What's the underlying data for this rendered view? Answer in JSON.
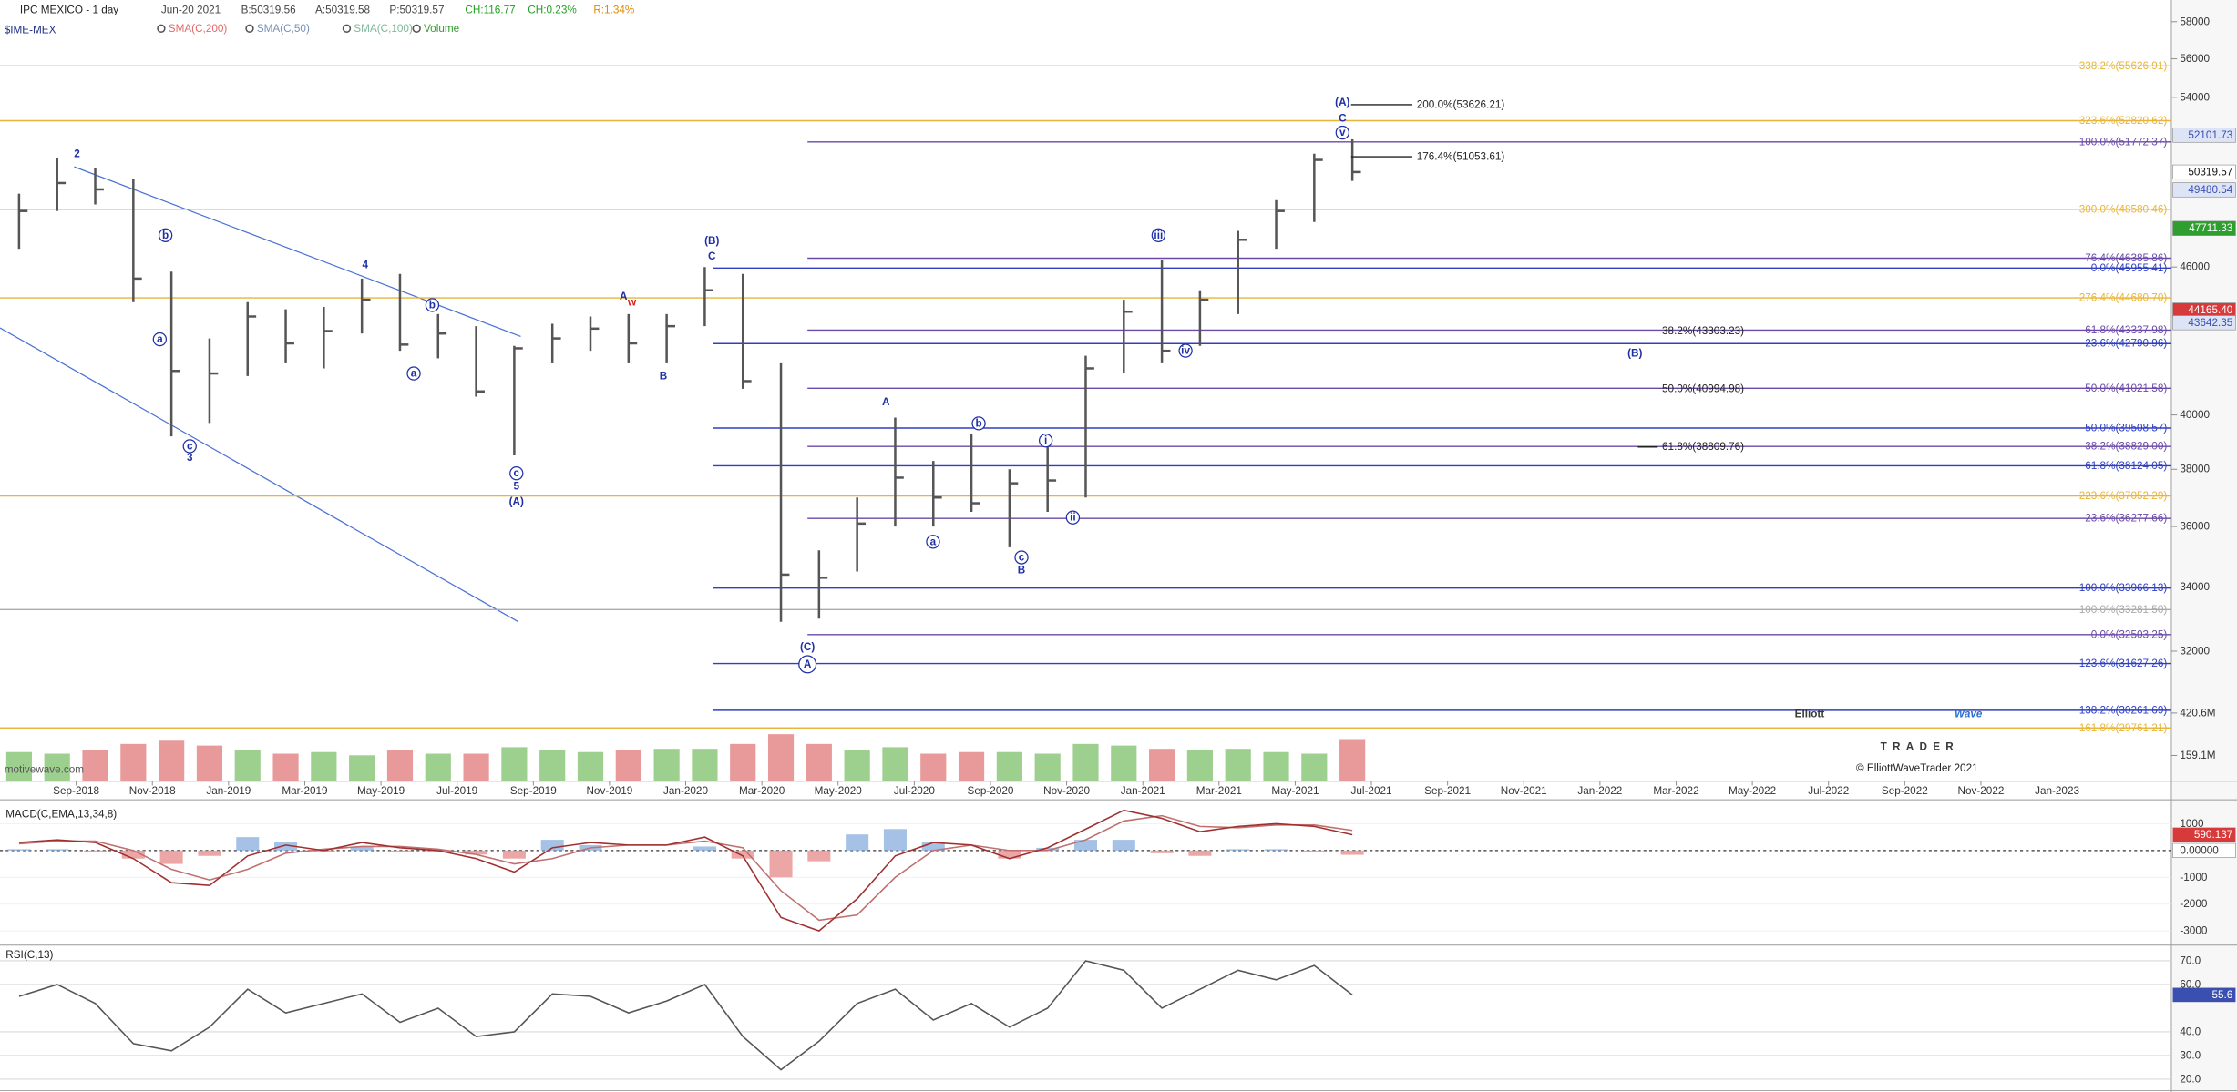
{
  "chart_data": [
    {
      "type": "ohlc",
      "title": "IPC MEXICO - 1 day",
      "subtitle": "$IME-MEX",
      "color": "#555555",
      "log": true,
      "quote": [
        {
          "text": "Jun-20 2021",
          "color": "#444444"
        },
        {
          "text": "B:50319.56",
          "color": "#444444"
        },
        {
          "text": "A:50319.58",
          "color": "#444444"
        },
        {
          "text": "P:50319.57",
          "color": "#444444"
        },
        {
          "text": "CH:116.77",
          "color": "#22a022"
        },
        {
          "text": "CH:0.23%",
          "color": "#22a022"
        },
        {
          "text": "R:1.34%",
          "color": "#e08a00"
        }
      ],
      "indicators": [
        {
          "text": "SMA(C,200)",
          "color": "#e06a6a"
        },
        {
          "text": "SMA(C,50)",
          "color": "#7a8fb8"
        },
        {
          "text": "SMA(C,100)",
          "color": "#7fb89a"
        },
        {
          "text": "Volume",
          "color": "#2e9e2e"
        }
      ],
      "watermark": "motivewave.com",
      "logo": {
        "word1": "Elliott",
        "word2": "Wave",
        "word3": "TRADER",
        "copyright": "© ElliottWaveTrader 2021"
      },
      "xlim": [
        "2018-07",
        "2023-04"
      ],
      "xticks": [
        {
          "value": "2018-09",
          "label": "Sep-2018"
        },
        {
          "value": "2018-11",
          "label": "Nov-2018"
        },
        {
          "value": "2019-01",
          "label": "Jan-2019"
        },
        {
          "value": "2019-03",
          "label": "Mar-2019"
        },
        {
          "value": "2019-05",
          "label": "May-2019"
        },
        {
          "value": "2019-07",
          "label": "Jul-2019"
        },
        {
          "value": "2019-09",
          "label": "Sep-2019"
        },
        {
          "value": "2019-11",
          "label": "Nov-2019"
        },
        {
          "value": "2020-01",
          "label": "Jan-2020"
        },
        {
          "value": "2020-03",
          "label": "Mar-2020"
        },
        {
          "value": "2020-05",
          "label": "May-2020"
        },
        {
          "value": "2020-07",
          "label": "Jul-2020"
        },
        {
          "value": "2020-09",
          "label": "Sep-2020"
        },
        {
          "value": "2020-11",
          "label": "Nov-2020"
        },
        {
          "value": "2021-01",
          "label": "Jan-2021"
        },
        {
          "value": "2021-03",
          "label": "Mar-2021"
        },
        {
          "value": "2021-05",
          "label": "May-2021"
        },
        {
          "value": "2021-07",
          "label": "Jul-2021"
        },
        {
          "value": "2021-09",
          "label": "Sep-2021"
        },
        {
          "value": "2021-11",
          "label": "Nov-2021"
        },
        {
          "value": "2022-01",
          "label": "Jan-2022"
        },
        {
          "value": "2022-03",
          "label": "Mar-2022"
        },
        {
          "value": "2022-05",
          "label": "May-2022"
        },
        {
          "value": "2022-07",
          "label": "Jul-2022"
        },
        {
          "value": "2022-09",
          "label": "Sep-2022"
        },
        {
          "value": "2022-11",
          "label": "Nov-2022"
        },
        {
          "value": "2023-01",
          "label": "Jan-2023"
        }
      ],
      "ylim": [
        28300,
        59200
      ],
      "yticks": [
        58000,
        56000,
        54000,
        46000,
        40000,
        38000,
        36000,
        34000,
        32000
      ],
      "x": [
        "2018-07",
        "2018-08",
        "2018-09",
        "2018-10",
        "2018-11",
        "2018-12",
        "2019-01",
        "2019-02",
        "2019-03",
        "2019-04",
        "2019-05",
        "2019-06",
        "2019-07",
        "2019-08",
        "2019-09",
        "2019-10",
        "2019-11",
        "2019-12",
        "2020-01",
        "2020-02",
        "2020-03",
        "2020-04",
        "2020-05",
        "2020-06",
        "2020-07",
        "2020-08",
        "2020-09",
        "2020-10",
        "2020-11",
        "2020-12",
        "2021-01",
        "2021-02",
        "2021-03",
        "2021-04",
        "2021-05",
        "2021-06"
      ],
      "close": [
        48500,
        49800,
        49500,
        45500,
        41700,
        41600,
        43900,
        42800,
        43300,
        44600,
        42750,
        43200,
        40900,
        42600,
        43000,
        43400,
        42800,
        43500,
        45000,
        41300,
        34400,
        34300,
        36100,
        37700,
        37000,
        36800,
        37500,
        37600,
        41800,
        44100,
        42500,
        44600,
        47200,
        48500,
        50900,
        50319.57
      ],
      "high": [
        49300,
        51000,
        50500,
        50000,
        45800,
        43000,
        44500,
        44200,
        44300,
        45500,
        45700,
        44000,
        43500,
        42700,
        43600,
        43900,
        44000,
        44000,
        46000,
        45700,
        42000,
        35200,
        37000,
        39900,
        38300,
        39300,
        38000,
        38800,
        42300,
        44600,
        46300,
        45000,
        47600,
        49000,
        51200,
        51900
      ],
      "low": [
        46800,
        48500,
        48800,
        44500,
        39200,
        39700,
        41500,
        42000,
        41800,
        43200,
        42500,
        42200,
        40700,
        38500,
        42000,
        42500,
        42000,
        42000,
        43500,
        41000,
        32900,
        33000,
        34500,
        36000,
        36000,
        36500,
        35300,
        36500,
        37000,
        41600,
        42000,
        42700,
        44000,
        46800,
        48000,
        49900
      ],
      "levels": [
        {
          "value": 55626.91,
          "label": "338.2%(55626.91)",
          "color": "#e8b53c"
        },
        {
          "value": 52820.62,
          "label": "323.6%(52820.62)",
          "color": "#e8b53c"
        },
        {
          "value": 51772.37,
          "label": "100.0%(51772.37)",
          "color": "#6a4aa8"
        },
        {
          "value": 48580.46,
          "label": "300.0%(48580.46)",
          "color": "#e8b53c"
        },
        {
          "value": 46385.86,
          "label": "76.4%(46385.86)",
          "color": "#6a4aa8"
        },
        {
          "value": 45955.41,
          "label": "0.0%(45955.41)",
          "color": "#2f3fc0"
        },
        {
          "value": 44680.7,
          "label": "276.4%(44680.70)",
          "color": "#e8b53c"
        },
        {
          "value": 43337.98,
          "label": "61.8%(43337.98)",
          "color": "#6a4aa8"
        },
        {
          "value": 42790.96,
          "label": "23.6%(42790.96)",
          "color": "#2f3fc0"
        },
        {
          "value": 41021.58,
          "label": "50.0%(41021.58)",
          "color": "#6a4aa8"
        },
        {
          "value": 39508.57,
          "label": "50.0%(39508.57)",
          "color": "#2f3fc0"
        },
        {
          "value": 38829,
          "label": "38.2%(38829.00)",
          "color": "#6a4aa8"
        },
        {
          "value": 38124.05,
          "label": "61.8%(38124.05)",
          "color": "#2f3fc0"
        },
        {
          "value": 37052.29,
          "label": "223.6%(37052.29)",
          "color": "#e8b53c"
        },
        {
          "value": 36277.66,
          "label": "23.6%(36277.66)",
          "color": "#6a4aa8"
        },
        {
          "value": 33966.13,
          "label": "100.0%(33966.13)",
          "color": "#2f3fc0"
        },
        {
          "value": 33281.5,
          "label": "100.0%(33281.50)",
          "color": "#aaaaaa"
        },
        {
          "value": 32503.25,
          "label": "0.0%(32503.25)",
          "color": "#6a4aa8"
        },
        {
          "value": 31627.26,
          "label": "123.6%(31627.26)",
          "color": "#2f3fc0"
        },
        {
          "value": 30261.69,
          "label": "138.2%(30261.69)",
          "color": "#2f3fc0"
        },
        {
          "value": 29761.21,
          "label": "161.8%(29761.21)",
          "color": "#e8b53c"
        }
      ],
      "callouts": [
        {
          "value": 53626.21,
          "label": "200.0%(53626.21)"
        },
        {
          "value": 51053.61,
          "label": "176.4%(51053.61)"
        },
        {
          "value": 43303.23,
          "label": "38.2%(43303.23)"
        },
        {
          "value": 40994.98,
          "label": "50.0%(40994.98)"
        },
        {
          "value": 38809.76,
          "label": "61.8%(38809.76)"
        }
      ],
      "markers": [
        {
          "value": 52101.73,
          "bg": "#dde4f6",
          "fg": "#3a4fb0"
        },
        {
          "value": 49480.54,
          "bg": "#dde4f6",
          "fg": "#3a4fb0"
        },
        {
          "value": 47711.33,
          "bg": "#2e9e2e",
          "fg": "#ffffff"
        },
        {
          "value": 44165.4,
          "label": "44165.40",
          "bg": "#d63a3a",
          "fg": "#ffffff"
        },
        {
          "value": 43642.35,
          "bg": "#dde4f6",
          "fg": "#3a4fb0"
        }
      ],
      "waves": [
        {
          "text": "2",
          "color": "#1f2fa8"
        },
        {
          "text": "b",
          "color": "#1f2fa8",
          "circled": true
        },
        {
          "text": "a",
          "color": "#1f2fa8",
          "circled": true
        },
        {
          "text": "c",
          "color": "#1f2fa8",
          "circled": true
        },
        {
          "text": "3",
          "color": "#1f2fa8"
        },
        {
          "text": "4",
          "color": "#1f2fa8"
        },
        {
          "text": "b",
          "color": "#1f2fa8",
          "circled": true
        },
        {
          "text": "a",
          "color": "#1f2fa8",
          "circled": true
        },
        {
          "text": "c",
          "color": "#1f2fa8",
          "circled": true
        },
        {
          "text": "5",
          "color": "#1f2fa8"
        },
        {
          "text": "(A)",
          "color": "#1f2fa8"
        },
        {
          "text": "A",
          "color": "#1f2fa8"
        },
        {
          "text": "w",
          "color": "#d42020"
        },
        {
          "text": "B",
          "color": "#1f2fa8"
        },
        {
          "text": "(B)",
          "color": "#1f2fa8"
        },
        {
          "text": "C",
          "color": "#1f2fa8"
        },
        {
          "text": "A",
          "color": "#1f2fa8"
        },
        {
          "text": "b",
          "color": "#1f2fa8",
          "circled": true
        },
        {
          "text": "a",
          "color": "#1f2fa8",
          "circled": true
        },
        {
          "text": "c",
          "color": "#1f2fa8",
          "circled": true
        },
        {
          "text": "B",
          "color": "#1f2fa8"
        },
        {
          "text": "i",
          "color": "#1f2fa8",
          "circled": true
        },
        {
          "text": "ii",
          "color": "#1f2fa8",
          "circled": true
        },
        {
          "text": "iii",
          "color": "#1f2fa8",
          "circled": true
        },
        {
          "text": "iv",
          "color": "#1f2fa8",
          "circled": true
        },
        {
          "text": "v",
          "color": "#1f2fa8",
          "circled": true
        },
        {
          "text": "C",
          "color": "#1f2fa8"
        },
        {
          "text": "(A)",
          "color": "#1f2fa8"
        },
        {
          "text": "(C)",
          "color": "#1f2fa8"
        },
        {
          "text": "A",
          "color": "#1f2fa8",
          "circled": true
        },
        {
          "text": "(B)",
          "color": "#1f2fa8"
        }
      ]
    },
    {
      "type": "bar",
      "up_color": "#7cc06a",
      "down_color": "#e07878",
      "ylim": [
        0,
        510
      ],
      "yticks": [
        {
          "value": 420.6,
          "label": "420.6M"
        },
        {
          "value": 159.1,
          "label": "159.1M"
        }
      ],
      "values": [
        180,
        170,
        190,
        230,
        250,
        220,
        190,
        170,
        180,
        160,
        190,
        170,
        170,
        210,
        190,
        180,
        190,
        200,
        200,
        230,
        290,
        230,
        190,
        210,
        170,
        180,
        180,
        170,
        230,
        220,
        200,
        190,
        200,
        180,
        170,
        260
      ]
    },
    {
      "type": "macd",
      "title": "MACD(C,EMA,13,34,8)",
      "macd_color": "#a03030",
      "signal_color": "#c07070",
      "up_color": "#8fb3e0",
      "down_color": "#e89090",
      "ylim": [
        -3370,
        1840
      ],
      "yticks": [
        1000,
        {
          "value": 0,
          "label": "0.00000"
        },
        -1000,
        -2000,
        -3000
      ],
      "macd": [
        300,
        400,
        300,
        -300,
        -1200,
        -1300,
        -200,
        200,
        0,
        300,
        100,
        0,
        -300,
        -800,
        100,
        300,
        200,
        200,
        500,
        -200,
        -2500,
        -3000,
        -1800,
        -200,
        300,
        200,
        -300,
        100,
        800,
        1500,
        1200,
        700,
        900,
        1000,
        900,
        590.137
      ],
      "signal": [
        250,
        350,
        350,
        0,
        -700,
        -1100,
        -700,
        -100,
        50,
        150,
        150,
        50,
        -150,
        -500,
        -300,
        100,
        200,
        200,
        350,
        100,
        -1500,
        -2600,
        -2400,
        -1000,
        0,
        200,
        0,
        0,
        400,
        1100,
        1300,
        900,
        850,
        950,
        950,
        750
      ],
      "histogram": [
        50,
        50,
        -50,
        -300,
        -500,
        -200,
        500,
        300,
        -50,
        150,
        -50,
        -50,
        -150,
        -300,
        400,
        200,
        0,
        0,
        150,
        -300,
        -1000,
        -400,
        600,
        800,
        300,
        0,
        -300,
        100,
        400,
        400,
        -100,
        -200,
        50,
        50,
        -50,
        -160
      ]
    },
    {
      "type": "line",
      "title": "RSI(C,13)",
      "color": "#555555",
      "marker_color": "#3a4fb0",
      "ylim": [
        18.2,
        76
      ],
      "yticks": [
        {
          "value": 70,
          "label": "70.0"
        },
        {
          "value": 60,
          "label": "60.0"
        },
        {
          "value": 40,
          "label": "40.0"
        },
        {
          "value": 30,
          "label": "30.0"
        },
        {
          "value": 20,
          "label": "20.0"
        }
      ],
      "values": [
        55,
        60,
        52,
        35,
        32,
        42,
        58,
        48,
        52,
        56,
        44,
        50,
        38,
        40,
        56,
        55,
        48,
        53,
        60,
        38,
        24,
        36,
        52,
        58,
        45,
        52,
        42,
        50,
        70,
        66,
        50,
        58,
        66,
        62,
        68,
        55.6
      ]
    }
  ]
}
